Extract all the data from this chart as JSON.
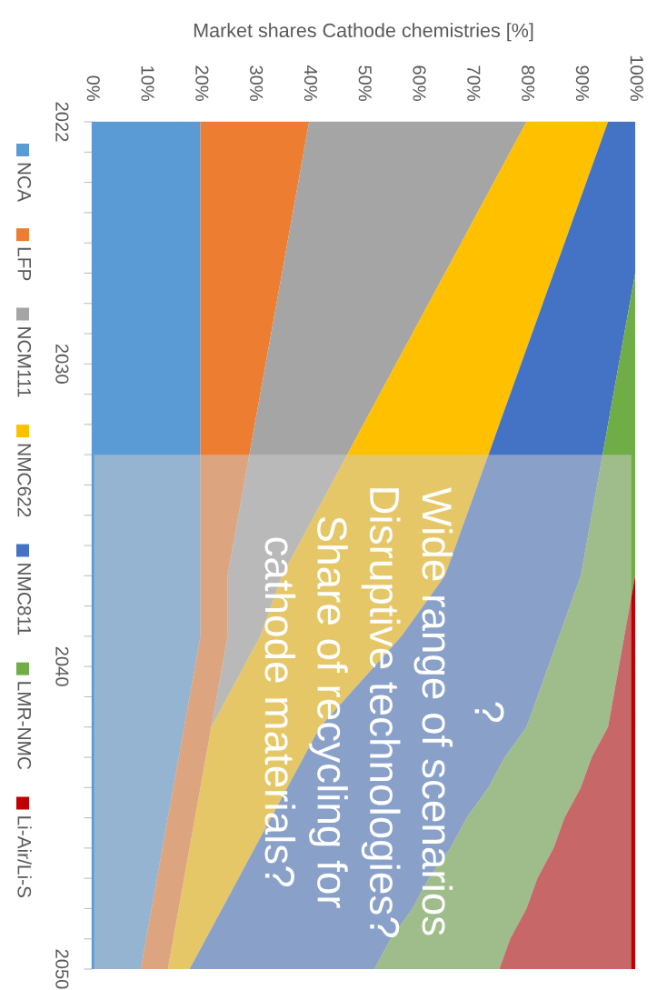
{
  "chart_data": {
    "type": "area",
    "orientation": "horizontal",
    "stacked": true,
    "xlabel": "Market shares Cathode chemistries [%]",
    "x": [
      2022,
      2023,
      2024,
      2025,
      2026,
      2027,
      2028,
      2029,
      2030,
      2031,
      2032,
      2033,
      2034,
      2035,
      2036,
      2037,
      2038,
      2039,
      2040,
      2041,
      2042,
      2043,
      2044,
      2045,
      2046,
      2047,
      2048,
      2049,
      2050
    ],
    "xlim": [
      0,
      100
    ],
    "xticks": [
      {
        "value": 0,
        "label": "0%"
      },
      {
        "value": 10,
        "label": "10%"
      },
      {
        "value": 20,
        "label": "20%"
      },
      {
        "value": 30,
        "label": "30%"
      },
      {
        "value": 40,
        "label": "40%"
      },
      {
        "value": 50,
        "label": "50%"
      },
      {
        "value": 60,
        "label": "60%"
      },
      {
        "value": 70,
        "label": "70%"
      },
      {
        "value": 80,
        "label": "80%"
      },
      {
        "value": 90,
        "label": "90%"
      },
      {
        "value": 100,
        "label": "100%"
      }
    ],
    "ylim": [
      2050,
      2022
    ],
    "yticks": [
      2022,
      {
        "value": 2023,
        "label": null
      },
      {
        "value": 2024,
        "label": null
      },
      {
        "value": 2025,
        "label": null
      },
      {
        "value": 2026,
        "label": null
      },
      {
        "value": 2027,
        "label": null
      },
      {
        "value": 2028,
        "label": null
      },
      {
        "value": 2029,
        "label": null
      },
      2030,
      {
        "value": 2031,
        "label": null
      },
      {
        "value": 2032,
        "label": null
      },
      {
        "value": 2033,
        "label": null
      },
      {
        "value": 2034,
        "label": null
      },
      {
        "value": 2035,
        "label": null
      },
      {
        "value": 2036,
        "label": null
      },
      {
        "value": 2037,
        "label": null
      },
      {
        "value": 2038,
        "label": null
      },
      {
        "value": 2039,
        "label": null
      },
      2040,
      {
        "value": 2041,
        "label": null
      },
      {
        "value": 2042,
        "label": null
      },
      {
        "value": 2043,
        "label": null
      },
      {
        "value": 2044,
        "label": null
      },
      {
        "value": 2045,
        "label": null
      },
      {
        "value": 2046,
        "label": null
      },
      {
        "value": 2047,
        "label": null
      },
      {
        "value": 2048,
        "label": null
      },
      {
        "value": 2049,
        "label": null
      },
      2050
    ],
    "series": [
      {
        "name": "NCA",
        "color": "#5b9bd5",
        "values": [
          20,
          20,
          20,
          20,
          20,
          20,
          20,
          20,
          20,
          20,
          20,
          20,
          20,
          20,
          20,
          20,
          20,
          20,
          19,
          18,
          17,
          16,
          15,
          14,
          13,
          12,
          11,
          10,
          9
        ]
      },
      {
        "name": "LFP",
        "color": "#ed7d31",
        "values": [
          20,
          19,
          18,
          17,
          16,
          15,
          14,
          13,
          12,
          11,
          10,
          9,
          8,
          7,
          6,
          5,
          5,
          5,
          5,
          5,
          5,
          5,
          5,
          5,
          5,
          5,
          5,
          5,
          5
        ]
      },
      {
        "name": "NCM111",
        "color": "#a5a5a5",
        "values": [
          40,
          38,
          36,
          34,
          32,
          30,
          28,
          26,
          24,
          22,
          20,
          18,
          16,
          14,
          12,
          10,
          8,
          6,
          4,
          2,
          0,
          0,
          0,
          0,
          0,
          0,
          0,
          0,
          0
        ]
      },
      {
        "name": "NMC622",
        "color": "#ffc000",
        "values": [
          15,
          16,
          17,
          18,
          19,
          20,
          21,
          22,
          23,
          24,
          25,
          26,
          27,
          28,
          29,
          30,
          28,
          26,
          24,
          22,
          20,
          18,
          16,
          14,
          12,
          10,
          8,
          6,
          4
        ]
      },
      {
        "name": "NMC811",
        "color": "#4472c4",
        "values": [
          5,
          7,
          9,
          11,
          13,
          15,
          16,
          17,
          18,
          19,
          20,
          21,
          22,
          23,
          24,
          25,
          27,
          29,
          32,
          35,
          38,
          37,
          37,
          36,
          36,
          35,
          35,
          34,
          34
        ]
      },
      {
        "name": "LMR-NMC",
        "color": "#70ad47",
        "values": [
          0,
          0,
          0,
          0,
          0,
          0,
          1,
          2,
          3,
          4,
          5,
          6,
          7,
          8,
          9,
          10,
          11,
          12,
          13,
          14,
          15,
          16,
          17,
          18,
          19,
          20,
          21,
          22,
          23
        ]
      },
      {
        "name": "Li-Air/Li-S",
        "color": "#c00000",
        "values": [
          0,
          0,
          0,
          0,
          0,
          0,
          0,
          0,
          0,
          0,
          0,
          0,
          0,
          0,
          0,
          0,
          1,
          2,
          3,
          4,
          5,
          8,
          10,
          13,
          15,
          18,
          20,
          23,
          25
        ]
      }
    ],
    "bands": [
      {
        "axis": "y",
        "from": 2033,
        "to": 2050,
        "color": "#cdcdcd",
        "label": "?\nWide range of scenarios\nDisruptive technologies?\nShare of recycling for\ncathode materials?"
      }
    ],
    "legend": "left"
  }
}
